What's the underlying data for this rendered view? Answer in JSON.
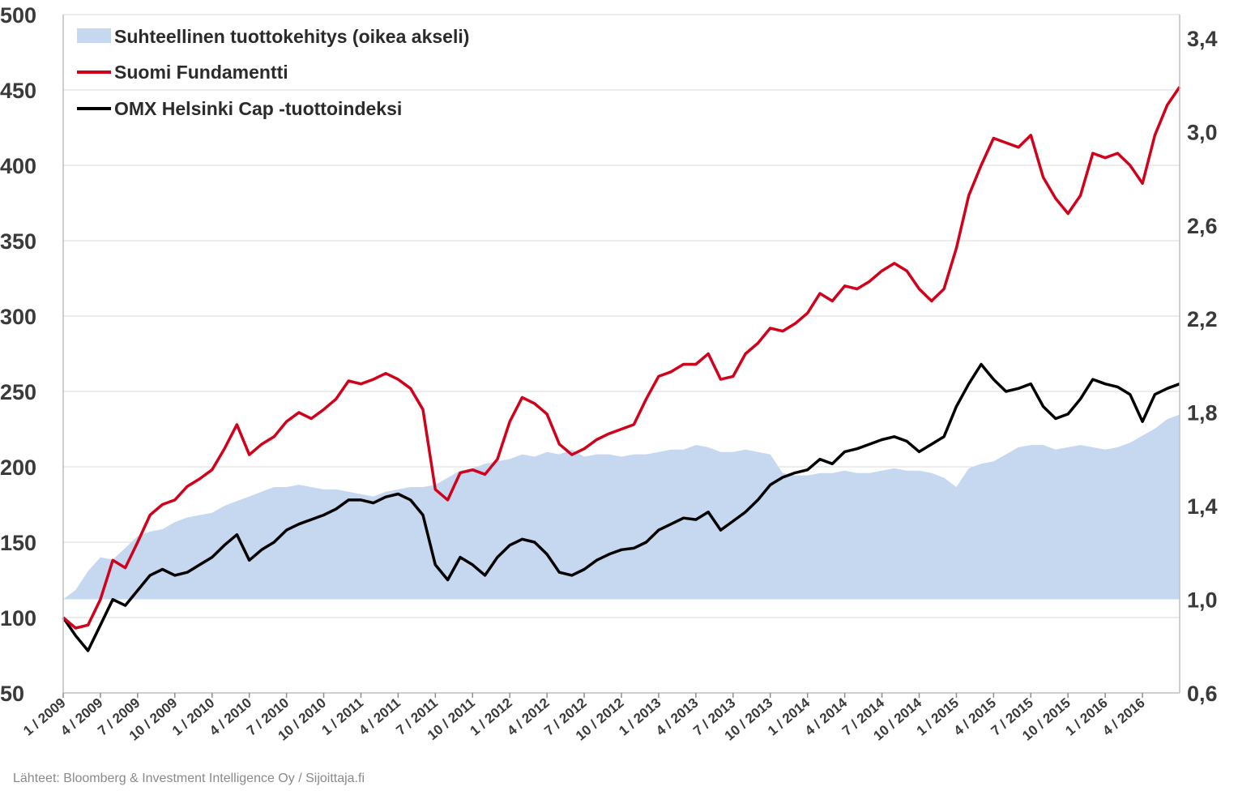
{
  "chart_data": {
    "type": "line",
    "title": "",
    "xlabel": "",
    "ylabel": "",
    "ylim": [
      50,
      500
    ],
    "y2lim": [
      0.6,
      3.5
    ],
    "yticks": [
      "50",
      "100",
      "150",
      "200",
      "250",
      "300",
      "350",
      "400",
      "450",
      "500"
    ],
    "y2ticks": [
      "0,6",
      "1,0",
      "1,4",
      "1,8",
      "2,2",
      "2,6",
      "3,0",
      "3,4"
    ],
    "x_ticks": [
      "1 / 2009",
      "4 / 2009",
      "7 / 2009",
      "10 / 2009",
      "1 / 2010",
      "4 / 2010",
      "7 / 2010",
      "10 / 2010",
      "1 / 2011",
      "4 / 2011",
      "7 / 2011",
      "10 / 2011",
      "1 / 2012",
      "4 / 2012",
      "7 / 2012",
      "10 / 2012",
      "1 / 2013",
      "4 / 2013",
      "7 / 2013",
      "10 / 2013",
      "1 / 2014",
      "4 / 2014",
      "7 / 2014",
      "10 / 2014",
      "1 / 2015",
      "4 / 2015",
      "7 / 2015",
      "10 / 2015",
      "1 / 2016",
      "4 / 2016"
    ],
    "x_range": [
      "2009-01",
      "2016-07"
    ],
    "grid": true,
    "legend_position": "top-left",
    "series": [
      {
        "name": "Suhteellinen tuottokehitys (oikea akseli)",
        "type": "area",
        "axis": "right",
        "color": "#c6d7f0",
        "x": [
          "2009-01",
          "2009-02",
          "2009-03",
          "2009-04",
          "2009-05",
          "2009-06",
          "2009-07",
          "2009-08",
          "2009-09",
          "2009-10",
          "2009-11",
          "2009-12",
          "2010-01",
          "2010-02",
          "2010-03",
          "2010-04",
          "2010-05",
          "2010-06",
          "2010-07",
          "2010-08",
          "2010-09",
          "2010-10",
          "2010-11",
          "2010-12",
          "2011-01",
          "2011-02",
          "2011-03",
          "2011-04",
          "2011-05",
          "2011-06",
          "2011-07",
          "2011-08",
          "2011-09",
          "2011-10",
          "2011-11",
          "2011-12",
          "2012-01",
          "2012-02",
          "2012-03",
          "2012-04",
          "2012-05",
          "2012-06",
          "2012-07",
          "2012-08",
          "2012-09",
          "2012-10",
          "2012-11",
          "2012-12",
          "2013-01",
          "2013-02",
          "2013-03",
          "2013-04",
          "2013-05",
          "2013-06",
          "2013-07",
          "2013-08",
          "2013-09",
          "2013-10",
          "2013-11",
          "2013-12",
          "2014-01",
          "2014-02",
          "2014-03",
          "2014-04",
          "2014-05",
          "2014-06",
          "2014-07",
          "2014-08",
          "2014-09",
          "2014-10",
          "2014-11",
          "2014-12",
          "2015-01",
          "2015-02",
          "2015-03",
          "2015-04",
          "2015-05",
          "2015-06",
          "2015-07",
          "2015-08",
          "2015-09",
          "2015-10",
          "2015-11",
          "2015-12",
          "2016-01",
          "2016-02",
          "2016-03",
          "2016-04",
          "2016-05",
          "2016-06",
          "2016-07"
        ],
        "values": [
          1.0,
          1.04,
          1.12,
          1.18,
          1.17,
          1.22,
          1.27,
          1.29,
          1.3,
          1.33,
          1.35,
          1.36,
          1.37,
          1.4,
          1.42,
          1.44,
          1.46,
          1.48,
          1.48,
          1.49,
          1.48,
          1.47,
          1.47,
          1.46,
          1.45,
          1.44,
          1.46,
          1.47,
          1.48,
          1.48,
          1.49,
          1.52,
          1.55,
          1.56,
          1.58,
          1.59,
          1.6,
          1.62,
          1.61,
          1.63,
          1.62,
          1.64,
          1.61,
          1.62,
          1.62,
          1.61,
          1.62,
          1.62,
          1.63,
          1.64,
          1.64,
          1.66,
          1.65,
          1.63,
          1.63,
          1.64,
          1.63,
          1.62,
          1.54,
          1.53,
          1.53,
          1.54,
          1.54,
          1.55,
          1.54,
          1.54,
          1.55,
          1.56,
          1.55,
          1.55,
          1.54,
          1.52,
          1.48,
          1.56,
          1.58,
          1.59,
          1.62,
          1.65,
          1.66,
          1.66,
          1.64,
          1.65,
          1.66,
          1.65,
          1.64,
          1.65,
          1.67,
          1.7,
          1.73,
          1.77,
          1.79
        ]
      },
      {
        "name": "Suomi Fundamentti",
        "type": "line",
        "axis": "left",
        "color": "#d0021b",
        "x": [
          "2009-01",
          "2009-02",
          "2009-03",
          "2009-04",
          "2009-05",
          "2009-06",
          "2009-07",
          "2009-08",
          "2009-09",
          "2009-10",
          "2009-11",
          "2009-12",
          "2010-01",
          "2010-02",
          "2010-03",
          "2010-04",
          "2010-05",
          "2010-06",
          "2010-07",
          "2010-08",
          "2010-09",
          "2010-10",
          "2010-11",
          "2010-12",
          "2011-01",
          "2011-02",
          "2011-03",
          "2011-04",
          "2011-05",
          "2011-06",
          "2011-07",
          "2011-08",
          "2011-09",
          "2011-10",
          "2011-11",
          "2011-12",
          "2012-01",
          "2012-02",
          "2012-03",
          "2012-04",
          "2012-05",
          "2012-06",
          "2012-07",
          "2012-08",
          "2012-09",
          "2012-10",
          "2012-11",
          "2012-12",
          "2013-01",
          "2013-02",
          "2013-03",
          "2013-04",
          "2013-05",
          "2013-06",
          "2013-07",
          "2013-08",
          "2013-09",
          "2013-10",
          "2013-11",
          "2013-12",
          "2014-01",
          "2014-02",
          "2014-03",
          "2014-04",
          "2014-05",
          "2014-06",
          "2014-07",
          "2014-08",
          "2014-09",
          "2014-10",
          "2014-11",
          "2014-12",
          "2015-01",
          "2015-02",
          "2015-03",
          "2015-04",
          "2015-05",
          "2015-06",
          "2015-07",
          "2015-08",
          "2015-09",
          "2015-10",
          "2015-11",
          "2015-12",
          "2016-01",
          "2016-02",
          "2016-03",
          "2016-04",
          "2016-05",
          "2016-06",
          "2016-07"
        ],
        "values": [
          100,
          93,
          95,
          112,
          138,
          133,
          150,
          168,
          175,
          178,
          187,
          192,
          198,
          212,
          228,
          208,
          215,
          220,
          230,
          236,
          232,
          238,
          245,
          257,
          255,
          258,
          262,
          258,
          252,
          238,
          185,
          178,
          196,
          198,
          195,
          205,
          230,
          246,
          242,
          235,
          215,
          208,
          212,
          218,
          222,
          225,
          228,
          245,
          260,
          263,
          268,
          268,
          275,
          258,
          260,
          275,
          282,
          292,
          290,
          295,
          302,
          315,
          310,
          320,
          318,
          323,
          330,
          335,
          330,
          318,
          310,
          318,
          345,
          380,
          400,
          418,
          415,
          412,
          420,
          392,
          378,
          368,
          380,
          408,
          405,
          408,
          400,
          388,
          420,
          440,
          452
        ]
      },
      {
        "name": "OMX Helsinki Cap -tuottoindeksi",
        "type": "line",
        "axis": "left",
        "color": "#000000",
        "x": [
          "2009-01",
          "2009-02",
          "2009-03",
          "2009-04",
          "2009-05",
          "2009-06",
          "2009-07",
          "2009-08",
          "2009-09",
          "2009-10",
          "2009-11",
          "2009-12",
          "2010-01",
          "2010-02",
          "2010-03",
          "2010-04",
          "2010-05",
          "2010-06",
          "2010-07",
          "2010-08",
          "2010-09",
          "2010-10",
          "2010-11",
          "2010-12",
          "2011-01",
          "2011-02",
          "2011-03",
          "2011-04",
          "2011-05",
          "2011-06",
          "2011-07",
          "2011-08",
          "2011-09",
          "2011-10",
          "2011-11",
          "2011-12",
          "2012-01",
          "2012-02",
          "2012-03",
          "2012-04",
          "2012-05",
          "2012-06",
          "2012-07",
          "2012-08",
          "2012-09",
          "2012-10",
          "2012-11",
          "2012-12",
          "2013-01",
          "2013-02",
          "2013-03",
          "2013-04",
          "2013-05",
          "2013-06",
          "2013-07",
          "2013-08",
          "2013-09",
          "2013-10",
          "2013-11",
          "2013-12",
          "2014-01",
          "2014-02",
          "2014-03",
          "2014-04",
          "2014-05",
          "2014-06",
          "2014-07",
          "2014-08",
          "2014-09",
          "2014-10",
          "2014-11",
          "2014-12",
          "2015-01",
          "2015-02",
          "2015-03",
          "2015-04",
          "2015-05",
          "2015-06",
          "2015-07",
          "2015-08",
          "2015-09",
          "2015-10",
          "2015-11",
          "2015-12",
          "2016-01",
          "2016-02",
          "2016-03",
          "2016-04",
          "2016-05",
          "2016-06",
          "2016-07"
        ],
        "values": [
          100,
          88,
          78,
          95,
          112,
          108,
          118,
          128,
          132,
          128,
          130,
          135,
          140,
          148,
          155,
          138,
          145,
          150,
          158,
          162,
          165,
          168,
          172,
          178,
          178,
          176,
          180,
          182,
          178,
          168,
          135,
          125,
          140,
          135,
          128,
          140,
          148,
          152,
          150,
          142,
          130,
          128,
          132,
          138,
          142,
          145,
          146,
          150,
          158,
          162,
          166,
          165,
          170,
          158,
          164,
          170,
          178,
          188,
          193,
          196,
          198,
          205,
          202,
          210,
          212,
          215,
          218,
          220,
          217,
          210,
          215,
          220,
          240,
          255,
          268,
          258,
          250,
          252,
          255,
          240,
          232,
          235,
          245,
          258,
          255,
          253,
          248,
          230,
          248,
          252,
          255
        ]
      }
    ]
  },
  "legend": {
    "items": [
      {
        "label": "Suhteellinen tuottokehitys (oikea akseli)",
        "color": "#c6d7f0"
      },
      {
        "label": "Suomi Fundamentti",
        "color": "#d0021b"
      },
      {
        "label": "OMX Helsinki Cap -tuottoindeksi",
        "color": "#000000"
      }
    ]
  },
  "source": "Lähteet: Bloomberg & Investment Intelligence Oy / Sijoittaja.fi"
}
